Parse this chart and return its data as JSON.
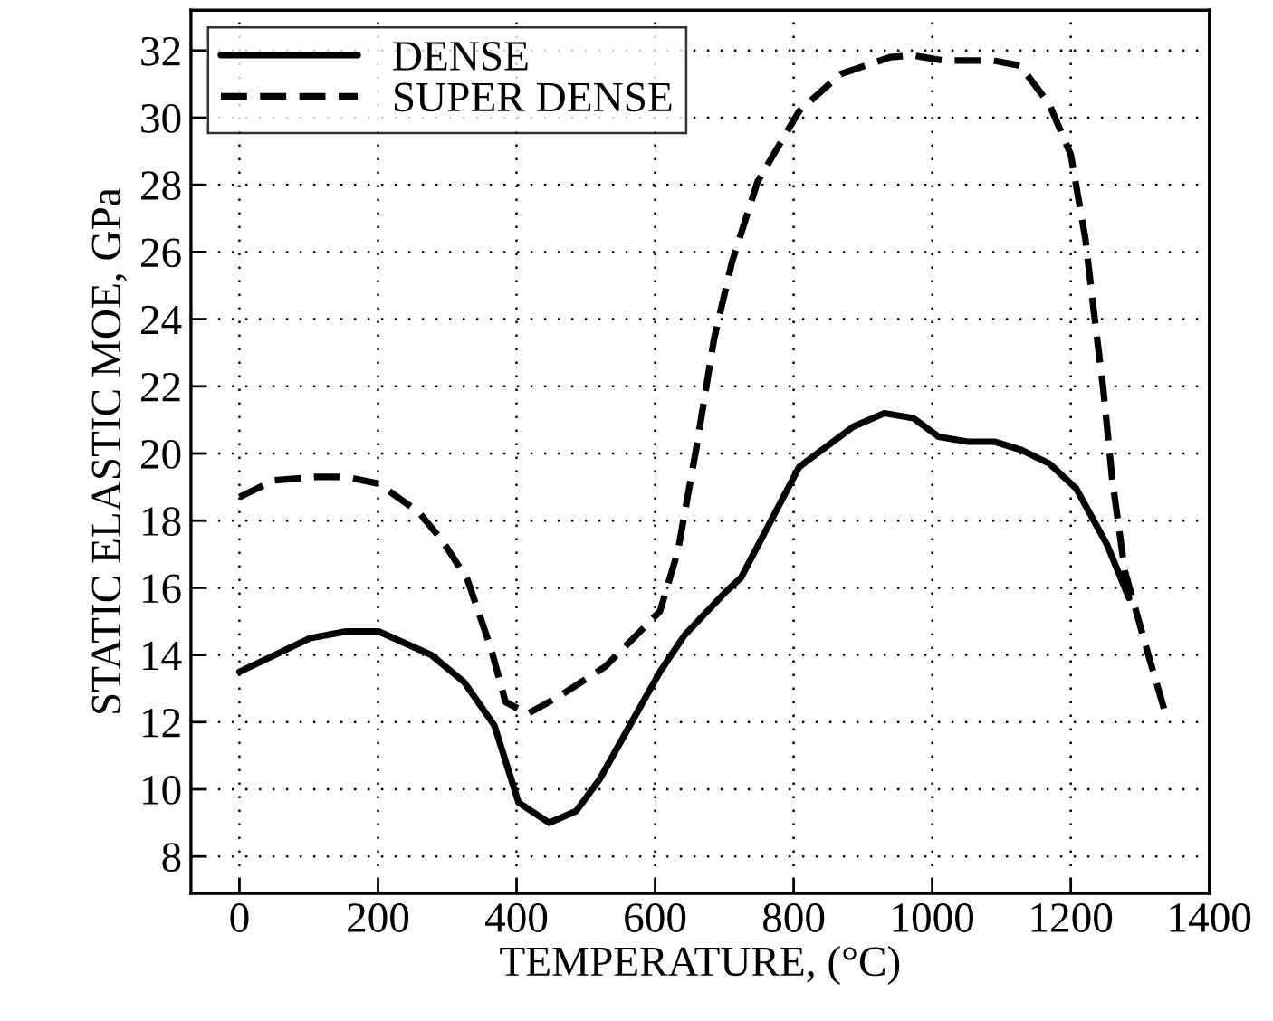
{
  "chart_data": {
    "type": "line",
    "xlabel": "TEMPERATURE, (°C)",
    "ylabel": "STATIC ELASTIC MOE, GPa",
    "xlim": [
      -70,
      1400
    ],
    "ylim": [
      6.9,
      33.2
    ],
    "xticks": [
      0,
      200,
      400,
      600,
      800,
      1000,
      1200,
      1400
    ],
    "yticks": [
      8,
      10,
      12,
      14,
      16,
      18,
      20,
      22,
      24,
      26,
      28,
      30,
      32
    ],
    "grid": true,
    "legend": "top left",
    "marker": "none",
    "series": [
      {
        "name": "DENSE",
        "color": "#000000",
        "line_style": "solid",
        "x": [
          0,
          102,
          154,
          201,
          277,
          324,
          368,
          403,
          447,
          486,
          520,
          607,
          643,
          703,
          724,
          808,
          886,
          931,
          973,
          1009,
          1051,
          1090,
          1129,
          1169,
          1208,
          1252,
          1284
        ],
        "values": [
          13.5,
          14.5,
          14.7,
          14.7,
          14.0,
          13.2,
          11.9,
          9.6,
          9.0,
          9.35,
          10.3,
          13.5,
          14.6,
          15.9,
          16.3,
          19.6,
          20.8,
          21.2,
          21.05,
          20.5,
          20.35,
          20.35,
          20.1,
          19.7,
          18.95,
          17.3,
          15.7
        ]
      },
      {
        "name": "SUPER DENSE",
        "color": "#000000",
        "line_style": "dashed",
        "x": [
          0,
          50,
          110,
          154,
          201,
          259,
          293,
          329,
          363,
          384,
          416,
          460,
          528,
          607,
          633,
          659,
          685,
          711,
          748,
          808,
          868,
          939,
          973,
          1017,
          1088,
          1127,
          1169,
          1200,
          1221,
          1234,
          1247,
          1260,
          1278,
          1312,
          1336
        ],
        "values": [
          18.7,
          19.2,
          19.3,
          19.3,
          19.1,
          18.25,
          17.4,
          16.25,
          14.2,
          12.6,
          12.25,
          12.75,
          13.65,
          15.3,
          17.1,
          20.1,
          23.4,
          25.7,
          28.1,
          30.2,
          31.3,
          31.8,
          31.85,
          31.7,
          31.7,
          31.55,
          30.4,
          28.9,
          26.4,
          24.1,
          21.9,
          19.2,
          16.5,
          14.0,
          12.3
        ]
      }
    ]
  }
}
